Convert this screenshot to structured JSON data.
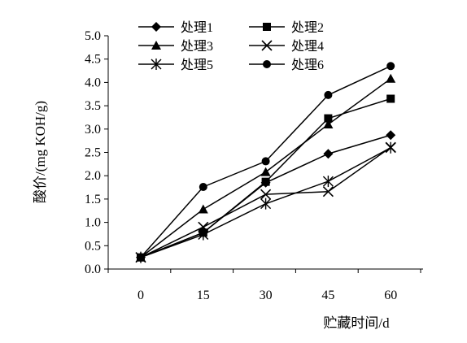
{
  "chart_data": {
    "type": "line",
    "title": "",
    "xlabel": "贮藏时间/d",
    "ylabel": "酸价/(mg KOH/g)",
    "x": [
      0,
      15,
      30,
      45,
      60
    ],
    "x_tick_labels": [
      "0",
      "15",
      "30",
      "45",
      "60"
    ],
    "ylim": [
      0.0,
      5.0
    ],
    "y_tick_labels": [
      "0.0",
      "0.5",
      "1.0",
      "1.5",
      "2.0",
      "2.5",
      "3.0",
      "3.5",
      "4.0",
      "4.5",
      "5.0"
    ],
    "grid": false,
    "legend_position": "top-left",
    "line_color": "#000000",
    "series": [
      {
        "name": "处理1",
        "marker": "diamond",
        "values": [
          0.25,
          0.78,
          1.85,
          2.47,
          2.87
        ]
      },
      {
        "name": "处理2",
        "marker": "square",
        "values": [
          0.25,
          0.78,
          1.87,
          3.23,
          3.65
        ]
      },
      {
        "name": "处理3",
        "marker": "triangle",
        "values": [
          0.25,
          1.28,
          2.08,
          3.1,
          4.08
        ]
      },
      {
        "name": "处理4",
        "marker": "x",
        "values": [
          0.25,
          0.9,
          1.6,
          1.66,
          2.61
        ]
      },
      {
        "name": "处理5",
        "marker": "star",
        "values": [
          0.25,
          0.74,
          1.4,
          1.88,
          2.6
        ]
      },
      {
        "name": "处理6",
        "marker": "circle",
        "values": [
          0.25,
          1.76,
          2.31,
          3.73,
          4.35
        ]
      }
    ]
  }
}
